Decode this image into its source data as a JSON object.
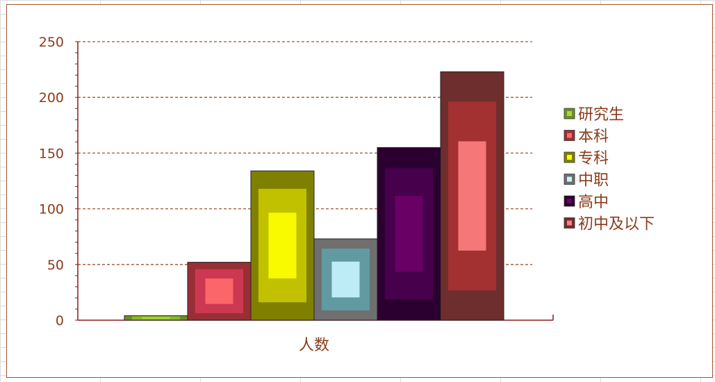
{
  "chart_data": {
    "type": "bar",
    "categories": [
      "人数"
    ],
    "series": [
      {
        "name": "研究生",
        "values": [
          4
        ],
        "colors": [
          "#6f8c2a",
          "#8dbd2e",
          "#a9d936"
        ]
      },
      {
        "name": "本科",
        "values": [
          52
        ],
        "colors": [
          "#9a2e36",
          "#d23a55",
          "#ff6b6b"
        ]
      },
      {
        "name": "专科",
        "values": [
          134
        ],
        "colors": [
          "#808000",
          "#c8c800",
          "#ffff00"
        ]
      },
      {
        "name": "中职",
        "values": [
          73
        ],
        "colors": [
          "#6f6f6f",
          "#5fa0a6",
          "#c8f4ff"
        ]
      },
      {
        "name": "高中",
        "values": [
          155
        ],
        "colors": [
          "#2b0030",
          "#4a004f",
          "#6b0068"
        ]
      },
      {
        "name": "初中及以下",
        "values": [
          223
        ],
        "colors": [
          "#6e2e2e",
          "#a83232",
          "#ff7f7f"
        ]
      }
    ],
    "ylim": [
      0,
      250
    ],
    "yticks": [
      "0",
      "50",
      "100",
      "150",
      "200",
      "250"
    ],
    "grid": true,
    "legend_position": "right"
  }
}
